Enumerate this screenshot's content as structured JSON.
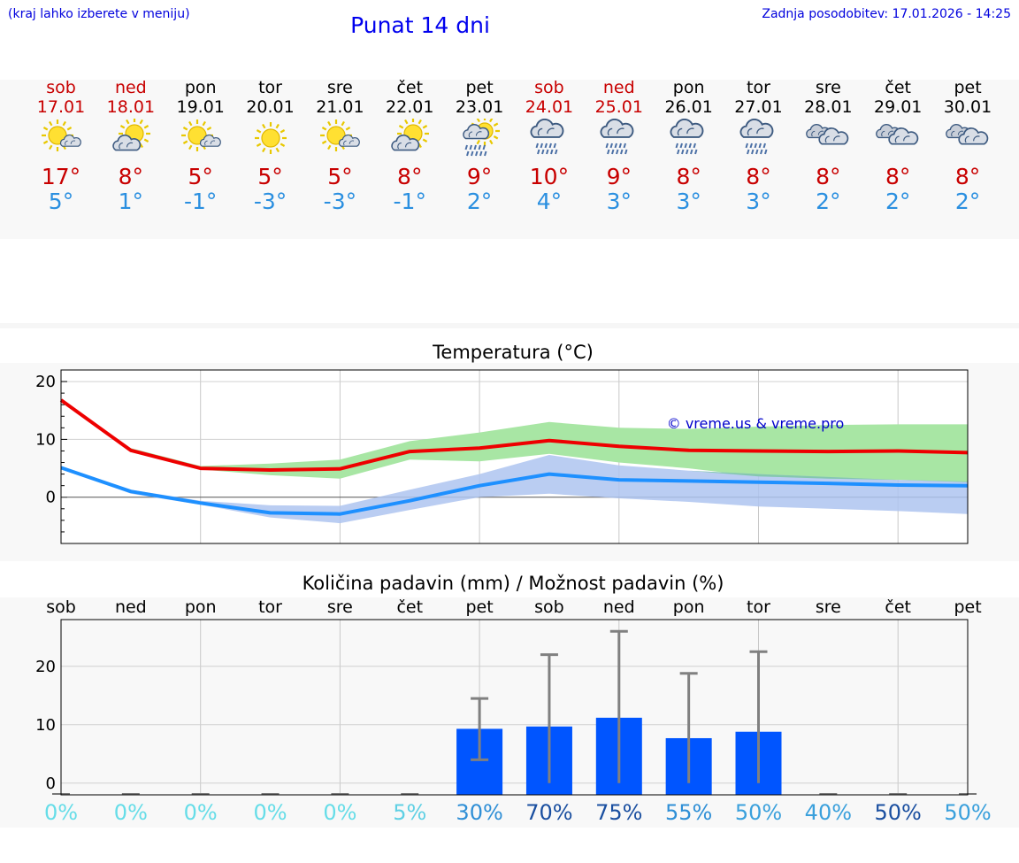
{
  "header": {
    "hint": "(kraj lahko izberete v meniju)",
    "title": "Punat 14 dni",
    "updated": "Zadnja posodobitev: 17.01.2026 - 14:25"
  },
  "days": [
    {
      "name": "sob",
      "date": "17.01",
      "weekend": true,
      "icon": "sun-cloud-icon",
      "tmax": "17°",
      "tmin": "5°"
    },
    {
      "name": "ned",
      "date": "18.01",
      "weekend": true,
      "icon": "cloud-sun-icon",
      "tmax": "8°",
      "tmin": "1°"
    },
    {
      "name": "pon",
      "date": "19.01",
      "weekend": false,
      "icon": "sun-cloud-icon",
      "tmax": "5°",
      "tmin": "-1°"
    },
    {
      "name": "tor",
      "date": "20.01",
      "weekend": false,
      "icon": "sun-icon",
      "tmax": "5°",
      "tmin": "-3°"
    },
    {
      "name": "sre",
      "date": "21.01",
      "weekend": false,
      "icon": "sun-cloud-icon",
      "tmax": "5°",
      "tmin": "-3°"
    },
    {
      "name": "čet",
      "date": "22.01",
      "weekend": false,
      "icon": "cloud-sun-icon",
      "tmax": "8°",
      "tmin": "-1°"
    },
    {
      "name": "pet",
      "date": "23.01",
      "weekend": false,
      "icon": "sun-cloud-rain-icon",
      "tmax": "9°",
      "tmin": "2°"
    },
    {
      "name": "sob",
      "date": "24.01",
      "weekend": true,
      "icon": "cloud-rain-icon",
      "tmax": "10°",
      "tmin": "4°"
    },
    {
      "name": "ned",
      "date": "25.01",
      "weekend": true,
      "icon": "cloud-rain-icon",
      "tmax": "9°",
      "tmin": "3°"
    },
    {
      "name": "pon",
      "date": "26.01",
      "weekend": false,
      "icon": "cloud-rain-icon",
      "tmax": "8°",
      "tmin": "3°"
    },
    {
      "name": "tor",
      "date": "27.01",
      "weekend": false,
      "icon": "cloud-rain-icon",
      "tmax": "8°",
      "tmin": "3°"
    },
    {
      "name": "sre",
      "date": "28.01",
      "weekend": false,
      "icon": "clouds-icon",
      "tmax": "8°",
      "tmin": "2°"
    },
    {
      "name": "čet",
      "date": "29.01",
      "weekend": false,
      "icon": "clouds-icon",
      "tmax": "8°",
      "tmin": "2°"
    },
    {
      "name": "pet",
      "date": "30.01",
      "weekend": false,
      "icon": "clouds-icon",
      "tmax": "8°",
      "tmin": "2°"
    }
  ],
  "colors": {
    "weekend": "#c80000",
    "tmax": "#c80000",
    "tmin": "#2a8fe0",
    "max_line": "#ee0000",
    "min_line": "#1e90ff",
    "max_band": "#a8e6a4",
    "min_band": "#aec4f0",
    "overlap_band": "#7fc6a8",
    "bar": "#0055ff",
    "error": "#808080"
  },
  "chart_data": [
    {
      "type": "line",
      "title": "Temperatura (°C)",
      "watermark": "© vreme.us & vreme.pro",
      "x": [
        0,
        1,
        2,
        3,
        4,
        5,
        6,
        7,
        8,
        9,
        10,
        11,
        12,
        13
      ],
      "ylim": [
        -8,
        22
      ],
      "yticks": [
        0,
        10,
        20
      ],
      "series": [
        {
          "name": "max",
          "values": [
            16.8,
            8.1,
            5.0,
            4.7,
            4.9,
            7.9,
            8.5,
            9.8,
            8.8,
            8.1,
            8.0,
            7.9,
            8.0,
            7.7
          ],
          "band_low": [
            16.8,
            8.0,
            4.8,
            3.8,
            3.2,
            6.5,
            6.2,
            7.5,
            6.0,
            5.0,
            3.6,
            3.2,
            3.0,
            2.6
          ],
          "band_high": [
            16.8,
            8.5,
            5.4,
            5.8,
            6.5,
            9.7,
            11.2,
            13.0,
            12.0,
            11.8,
            12.2,
            12.5,
            12.6,
            12.6
          ]
        },
        {
          "name": "min",
          "values": [
            5.1,
            1.0,
            -1.0,
            -2.7,
            -2.9,
            -0.6,
            2.0,
            4.0,
            3.0,
            2.8,
            2.6,
            2.4,
            2.1,
            2.0
          ],
          "band_low": [
            5.1,
            0.6,
            -1.3,
            -3.5,
            -4.5,
            -2.2,
            0.0,
            0.6,
            -0.2,
            -0.8,
            -1.6,
            -2.0,
            -2.4,
            -2.9
          ],
          "band_high": [
            5.1,
            1.3,
            -0.6,
            -1.4,
            -1.5,
            1.3,
            4.0,
            7.3,
            5.5,
            4.6,
            4.0,
            3.5,
            3.0,
            2.7
          ]
        }
      ]
    },
    {
      "type": "bar",
      "title": "Količina padavin (mm) / Možnost padavin (%)",
      "categories": [
        "sob",
        "ned",
        "pon",
        "tor",
        "sre",
        "čet",
        "pet",
        "sob",
        "ned",
        "pon",
        "tor",
        "sre",
        "čet",
        "pet"
      ],
      "values": [
        0,
        0,
        0,
        0,
        0,
        0,
        9.3,
        9.7,
        11.2,
        7.7,
        8.8,
        0,
        0,
        0
      ],
      "error_low": [
        0,
        0,
        0,
        0,
        0,
        0,
        4.0,
        0,
        0,
        0,
        0,
        0,
        0,
        0
      ],
      "error_high": [
        0,
        0,
        0,
        0,
        0,
        0,
        14.5,
        22.0,
        26.0,
        18.8,
        22.5,
        0,
        0,
        0
      ],
      "probability": [
        "0%",
        "0%",
        "0%",
        "0%",
        "0%",
        "5%",
        "30%",
        "70%",
        "75%",
        "55%",
        "50%",
        "40%",
        "50%",
        "50%"
      ],
      "probability_colors": [
        "#66dde8",
        "#66dde8",
        "#66dde8",
        "#66dde8",
        "#66dde8",
        "#5fd0e4",
        "#2f8fd6",
        "#1a4fa0",
        "#1a4fa0",
        "#2f8fd6",
        "#3aa0dc",
        "#3aa0dc",
        "#1a4fa0",
        "#3aa0dc"
      ],
      "ylim": [
        -2,
        28
      ],
      "yticks": [
        0,
        10,
        20
      ]
    }
  ]
}
